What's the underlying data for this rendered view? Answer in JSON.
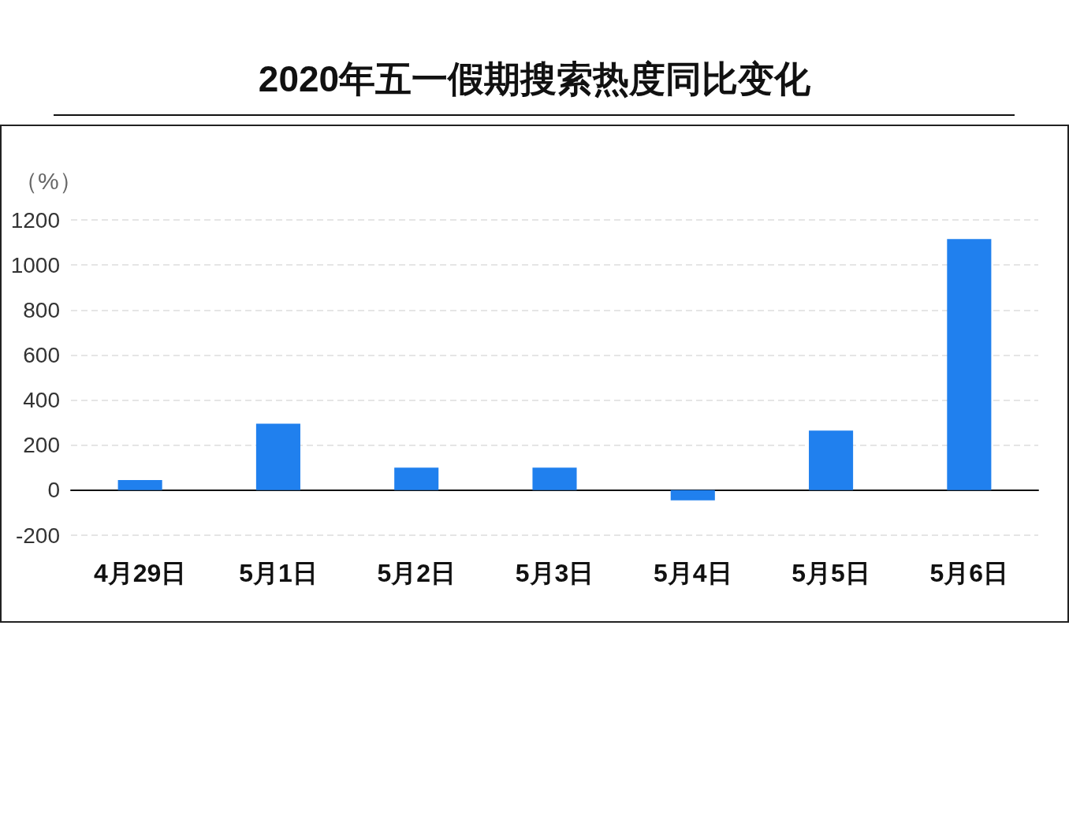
{
  "chart_data": {
    "type": "bar",
    "title": "2020年五一假期搜索热度同比变化",
    "ylabel": "（%）",
    "categories": [
      "4月29日",
      "5月1日",
      "5月2日",
      "5月3日",
      "5月4日",
      "5月5日",
      "5月6日"
    ],
    "values": [
      45,
      295,
      100,
      100,
      -45,
      265,
      1115
    ],
    "color": "#2080ee",
    "ylim": [
      -200,
      1200
    ],
    "yticks": [
      -200,
      0,
      200,
      400,
      600,
      800,
      1000,
      1200
    ],
    "grid": "y"
  }
}
